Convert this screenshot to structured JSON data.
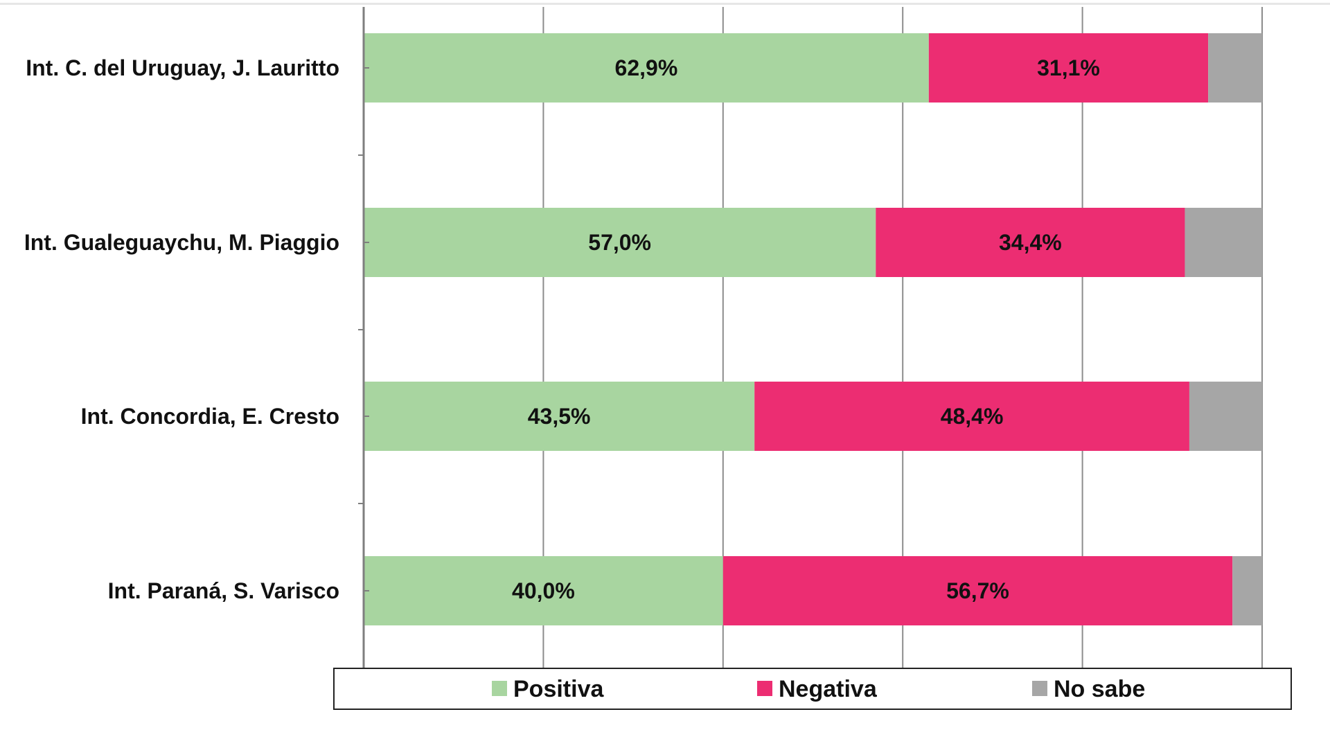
{
  "chart_data": {
    "type": "bar",
    "orientation": "horizontal",
    "stacked": true,
    "percent": true,
    "categories": [
      "Int. C. del Uruguay, J. Lauritto",
      "Int. Gualeguaychu, M. Piaggio",
      "Int. Concordia, E. Cresto",
      "Int. Paraná, S. Varisco"
    ],
    "series": [
      {
        "name": "Positiva",
        "color": "#a8d5a0",
        "values": [
          62.9,
          57.0,
          43.5,
          40.0
        ],
        "labels": [
          "62,9%",
          "57,0%",
          "43,5%",
          "40,0%"
        ]
      },
      {
        "name": "Negativa",
        "color": "#ec2d72",
        "values": [
          31.1,
          34.4,
          48.4,
          56.7
        ],
        "labels": [
          "31,1%",
          "34,4%",
          "48,4%",
          "56,7%"
        ]
      },
      {
        "name": "No sabe",
        "color": "#a6a6a6",
        "values": [
          6.0,
          8.6,
          8.1,
          3.3
        ],
        "labels": [
          "",
          "",
          "",
          ""
        ]
      }
    ],
    "xlim": [
      0,
      100
    ],
    "grid": true,
    "legend_position": "bottom",
    "title": "",
    "xlabel": "",
    "ylabel": ""
  }
}
